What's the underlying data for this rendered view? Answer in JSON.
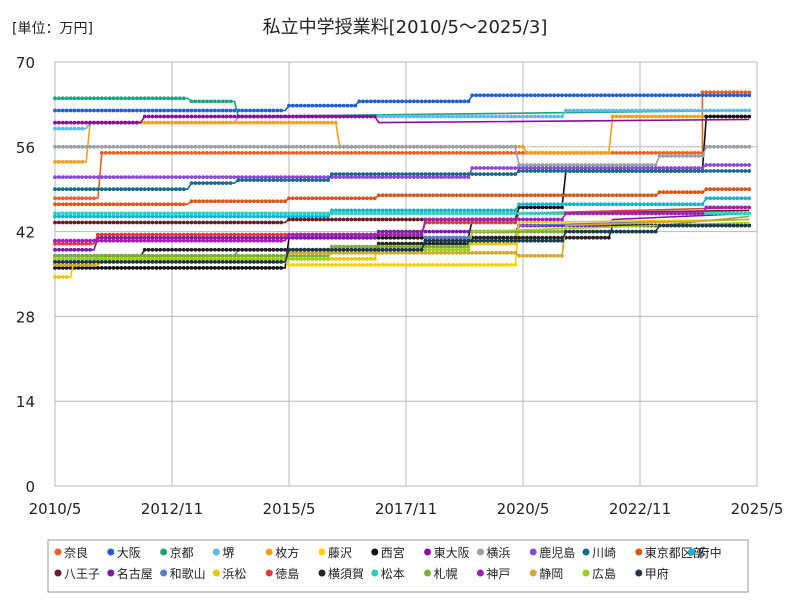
{
  "chart_data": {
    "type": "line",
    "title": "私立中学授業料[2010/5～2025/3]",
    "unit_label": "[単位：万円]",
    "xlabel": "",
    "ylabel": "",
    "ylim": [
      0,
      70
    ],
    "y_ticks": [
      0,
      14,
      28,
      42,
      56,
      70
    ],
    "x_ticks": [
      "2010/5",
      "2012/11",
      "2015/5",
      "2017/11",
      "2020/5",
      "2022/11",
      "2025/5"
    ],
    "grid": true,
    "legend_position": "bottom",
    "series": [
      {
        "name": "奈良",
        "color": "#e8622a",
        "points": [
          [
            "2010/5",
            47.5
          ],
          [
            "2011/4",
            47.5
          ],
          [
            "2011/5",
            55.0
          ],
          [
            "2024/3",
            55.0
          ],
          [
            "2024/3",
            65.0
          ],
          [
            "2025/3",
            65.0
          ]
        ]
      },
      {
        "name": "大阪",
        "color": "#1f5fd6",
        "points": [
          [
            "2010/5",
            62.0
          ],
          [
            "2015/4",
            62.0
          ],
          [
            "2015/5",
            62.8
          ],
          [
            "2016/10",
            62.8
          ],
          [
            "2016/11",
            63.5
          ],
          [
            "2019/3",
            63.5
          ],
          [
            "2019/4",
            64.5
          ],
          [
            "2025/3",
            64.5
          ]
        ]
      },
      {
        "name": "京都",
        "color": "#1aa37a",
        "points": [
          [
            "2010/5",
            64.0
          ],
          [
            "2013/3",
            64.0
          ],
          [
            "2013/4",
            63.5
          ],
          [
            "2014/3",
            63.5
          ],
          [
            "2014/4",
            61.0
          ],
          [
            "2025/3",
            62.0
          ]
        ]
      },
      {
        "name": "堺",
        "color": "#5bb8f0",
        "points": [
          [
            "2010/5",
            59.0
          ],
          [
            "2011/1",
            59.0
          ],
          [
            "2011/2",
            60.0
          ],
          [
            "2014/3",
            60.0
          ],
          [
            "2014/4",
            61.0
          ],
          [
            "2021/3",
            61.0
          ],
          [
            "2021/4",
            62.0
          ],
          [
            "2025/3",
            62.0
          ]
        ]
      },
      {
        "name": "枚方",
        "color": "#f0a020",
        "points": [
          [
            "2010/5",
            53.5
          ],
          [
            "2011/1",
            53.5
          ],
          [
            "2011/2",
            60.0
          ],
          [
            "2016/5",
            60.0
          ],
          [
            "2016/6",
            56.0
          ],
          [
            "2020/5",
            56.0
          ],
          [
            "2020/6",
            55.0
          ],
          [
            "2022/3",
            55.0
          ],
          [
            "2022/4",
            61.0
          ],
          [
            "2025/3",
            61.0
          ]
        ]
      },
      {
        "name": "藤沢",
        "color": "#f2d500",
        "points": [
          [
            "2010/5",
            38.0
          ],
          [
            "2015/4",
            38.0
          ],
          [
            "2015/5",
            36.5
          ],
          [
            "2020/3",
            36.5
          ],
          [
            "2020/4",
            43.0
          ],
          [
            "2025/3",
            44.0
          ]
        ]
      },
      {
        "name": "西宮",
        "color": "#111111",
        "points": [
          [
            "2010/5",
            36.0
          ],
          [
            "2015/4",
            36.0
          ],
          [
            "2015/5",
            41.0
          ],
          [
            "2019/3",
            41.0
          ],
          [
            "2019/4",
            44.0
          ],
          [
            "2020/3",
            44.0
          ],
          [
            "2020/4",
            46.0
          ],
          [
            "2021/3",
            46.0
          ],
          [
            "2021/4",
            52.0
          ],
          [
            "2024/3",
            52.0
          ],
          [
            "2024/4",
            61.0
          ],
          [
            "2025/3",
            61.0
          ]
        ]
      },
      {
        "name": "東大阪",
        "color": "#8a0aa0",
        "points": [
          [
            "2010/5",
            60.0
          ],
          [
            "2012/3",
            60.0
          ],
          [
            "2012/4",
            61.0
          ],
          [
            "2017/3",
            61.0
          ],
          [
            "2017/4",
            60.0
          ],
          [
            "2025/3",
            60.5
          ]
        ]
      },
      {
        "name": "横浜",
        "color": "#9aa0a6",
        "points": [
          [
            "2010/5",
            56.0
          ],
          [
            "2020/3",
            56.0
          ],
          [
            "2020/4",
            53.0
          ],
          [
            "2023/3",
            53.0
          ],
          [
            "2023/4",
            54.5
          ],
          [
            "2024/3",
            54.5
          ],
          [
            "2024/4",
            56.0
          ],
          [
            "2025/3",
            56.0
          ]
        ]
      },
      {
        "name": "鹿児島",
        "color": "#8a4ad8",
        "points": [
          [
            "2010/5",
            51.0
          ],
          [
            "2019/3",
            51.0
          ],
          [
            "2019/4",
            52.5
          ],
          [
            "2024/3",
            52.5
          ],
          [
            "2024/4",
            53.0
          ],
          [
            "2025/3",
            53.0
          ]
        ]
      },
      {
        "name": "川崎",
        "color": "#1a6a8a",
        "points": [
          [
            "2010/5",
            49.0
          ],
          [
            "2013/3",
            49.0
          ],
          [
            "2013/4",
            50.0
          ],
          [
            "2014/3",
            50.0
          ],
          [
            "2014/4",
            50.5
          ],
          [
            "2016/3",
            50.5
          ],
          [
            "2016/4",
            51.5
          ],
          [
            "2020/3",
            51.5
          ],
          [
            "2020/4",
            52.0
          ],
          [
            "2025/3",
            52.0
          ]
        ]
      },
      {
        "name": "東京都区部",
        "color": "#d9561a",
        "points": [
          [
            "2010/5",
            46.5
          ],
          [
            "2013/3",
            46.5
          ],
          [
            "2013/4",
            47.0
          ],
          [
            "2015/4",
            47.0
          ],
          [
            "2015/5",
            47.5
          ],
          [
            "2017/3",
            47.5
          ],
          [
            "2017/4",
            48.0
          ],
          [
            "2023/3",
            48.0
          ],
          [
            "2023/4",
            48.5
          ],
          [
            "2024/3",
            48.5
          ],
          [
            "2024/4",
            49.0
          ],
          [
            "2025/3",
            49.0
          ]
        ]
      },
      {
        "name": "府中",
        "color": "#1ab0d0",
        "points": [
          [
            "2010/5",
            44.5
          ],
          [
            "2016/3",
            44.5
          ],
          [
            "2016/4",
            45.5
          ],
          [
            "2020/3",
            45.5
          ],
          [
            "2020/4",
            46.5
          ],
          [
            "2024/3",
            46.5
          ],
          [
            "2024/4",
            47.5
          ],
          [
            "2025/3",
            47.5
          ]
        ]
      },
      {
        "name": "八王子",
        "color": "#6a1a2a",
        "points": [
          [
            "2010/5",
            43.5
          ],
          [
            "2015/4",
            43.5
          ],
          [
            "2015/5",
            44.0
          ],
          [
            "2020/3",
            44.0
          ],
          [
            "2020/4",
            45.0
          ],
          [
            "2025/3",
            45.5
          ]
        ]
      },
      {
        "name": "名古屋",
        "color": "#7a18b0",
        "points": [
          [
            "2010/5",
            39.0
          ],
          [
            "2011/3",
            39.0
          ],
          [
            "2011/4",
            41.0
          ],
          [
            "2017/3",
            41.0
          ],
          [
            "2017/4",
            42.0
          ],
          [
            "2020/3",
            42.0
          ],
          [
            "2020/4",
            43.0
          ],
          [
            "2022/3",
            43.0
          ],
          [
            "2022/4",
            44.0
          ],
          [
            "2025/3",
            45.0
          ]
        ]
      },
      {
        "name": "和歌山",
        "color": "#5a7ad0",
        "points": [
          [
            "2010/5",
            37.0
          ],
          [
            "2011/3",
            37.0
          ],
          [
            "2011/4",
            38.0
          ],
          [
            "2014/3",
            38.0
          ],
          [
            "2014/4",
            39.0
          ],
          [
            "2018/3",
            39.0
          ],
          [
            "2018/4",
            41.0
          ],
          [
            "2020/3",
            41.0
          ],
          [
            "2020/4",
            43.0
          ],
          [
            "2025/3",
            44.0
          ]
        ]
      },
      {
        "name": "浜松",
        "color": "#e8c800",
        "points": [
          [
            "2010/5",
            34.5
          ],
          [
            "2010/9",
            34.5
          ],
          [
            "2010/10",
            37.5
          ],
          [
            "2017/3",
            37.5
          ],
          [
            "2017/4",
            40.0
          ],
          [
            "2020/3",
            40.0
          ],
          [
            "2020/4",
            43.5
          ],
          [
            "2025/3",
            44.0
          ]
        ]
      },
      {
        "name": "徳島",
        "color": "#e03a3a",
        "points": [
          [
            "2010/5",
            40.0
          ],
          [
            "2011/3",
            40.0
          ],
          [
            "2011/4",
            41.5
          ],
          [
            "2018/3",
            41.5
          ],
          [
            "2018/4",
            43.5
          ],
          [
            "2020/3",
            43.5
          ],
          [
            "2020/4",
            45.0
          ],
          [
            "2025/3",
            46.0
          ]
        ]
      },
      {
        "name": "横須賀",
        "color": "#222222",
        "points": [
          [
            "2010/5",
            38.0
          ],
          [
            "2012/3",
            38.0
          ],
          [
            "2012/4",
            39.0
          ],
          [
            "2017/3",
            39.0
          ],
          [
            "2017/4",
            40.0
          ],
          [
            "2019/3",
            40.0
          ],
          [
            "2019/4",
            41.0
          ],
          [
            "2022/3",
            41.0
          ],
          [
            "2022/4",
            43.0
          ],
          [
            "2025/3",
            43.0
          ]
        ]
      },
      {
        "name": "松本",
        "color": "#2ad0c0",
        "points": [
          [
            "2010/5",
            45.0
          ],
          [
            "2025/3",
            45.0
          ]
        ]
      },
      {
        "name": "札幌",
        "color": "#7ab030",
        "points": [
          [
            "2010/5",
            38.0
          ],
          [
            "2016/3",
            38.0
          ],
          [
            "2016/4",
            39.5
          ],
          [
            "2019/3",
            39.5
          ],
          [
            "2019/4",
            42.0
          ],
          [
            "2023/3",
            42.0
          ],
          [
            "2023/4",
            43.0
          ],
          [
            "2025/3",
            44.5
          ]
        ]
      },
      {
        "name": "神戸",
        "color": "#a020b0",
        "points": [
          [
            "2010/5",
            40.5
          ],
          [
            "2015/4",
            40.5
          ],
          [
            "2015/5",
            41.5
          ],
          [
            "2018/3",
            41.5
          ],
          [
            "2018/4",
            44.0
          ],
          [
            "2021/3",
            44.0
          ],
          [
            "2021/4",
            45.0
          ],
          [
            "2024/3",
            45.0
          ],
          [
            "2024/4",
            46.0
          ],
          [
            "2025/3",
            46.0
          ]
        ]
      },
      {
        "name": "静岡",
        "color": "#d4a830",
        "points": [
          [
            "2010/5",
            36.5
          ],
          [
            "2011/4",
            36.5
          ],
          [
            "2011/5",
            37.0
          ],
          [
            "2015/4",
            37.0
          ],
          [
            "2015/5",
            38.5
          ],
          [
            "2020/3",
            38.5
          ],
          [
            "2020/4",
            38.0
          ],
          [
            "2021/3",
            38.0
          ],
          [
            "2021/4",
            43.0
          ],
          [
            "2025/3",
            44.0
          ]
        ]
      },
      {
        "name": "広島",
        "color": "#9ad020",
        "points": [
          [
            "2010/5",
            37.5
          ],
          [
            "2016/3",
            37.5
          ],
          [
            "2016/4",
            39.0
          ],
          [
            "2019/3",
            39.0
          ],
          [
            "2019/4",
            42.0
          ],
          [
            "2025/3",
            43.5
          ]
        ]
      },
      {
        "name": "甲府",
        "color": "#1a3a4a",
        "points": [
          [
            "2010/5",
            37.0
          ],
          [
            "2015/4",
            37.0
          ],
          [
            "2015/5",
            39.0
          ],
          [
            "2018/3",
            39.0
          ],
          [
            "2018/4",
            40.5
          ],
          [
            "2021/3",
            40.5
          ],
          [
            "2021/4",
            42.0
          ],
          [
            "2023/3",
            42.0
          ],
          [
            "2023/4",
            43.0
          ],
          [
            "2025/3",
            43.0
          ]
        ]
      }
    ]
  }
}
